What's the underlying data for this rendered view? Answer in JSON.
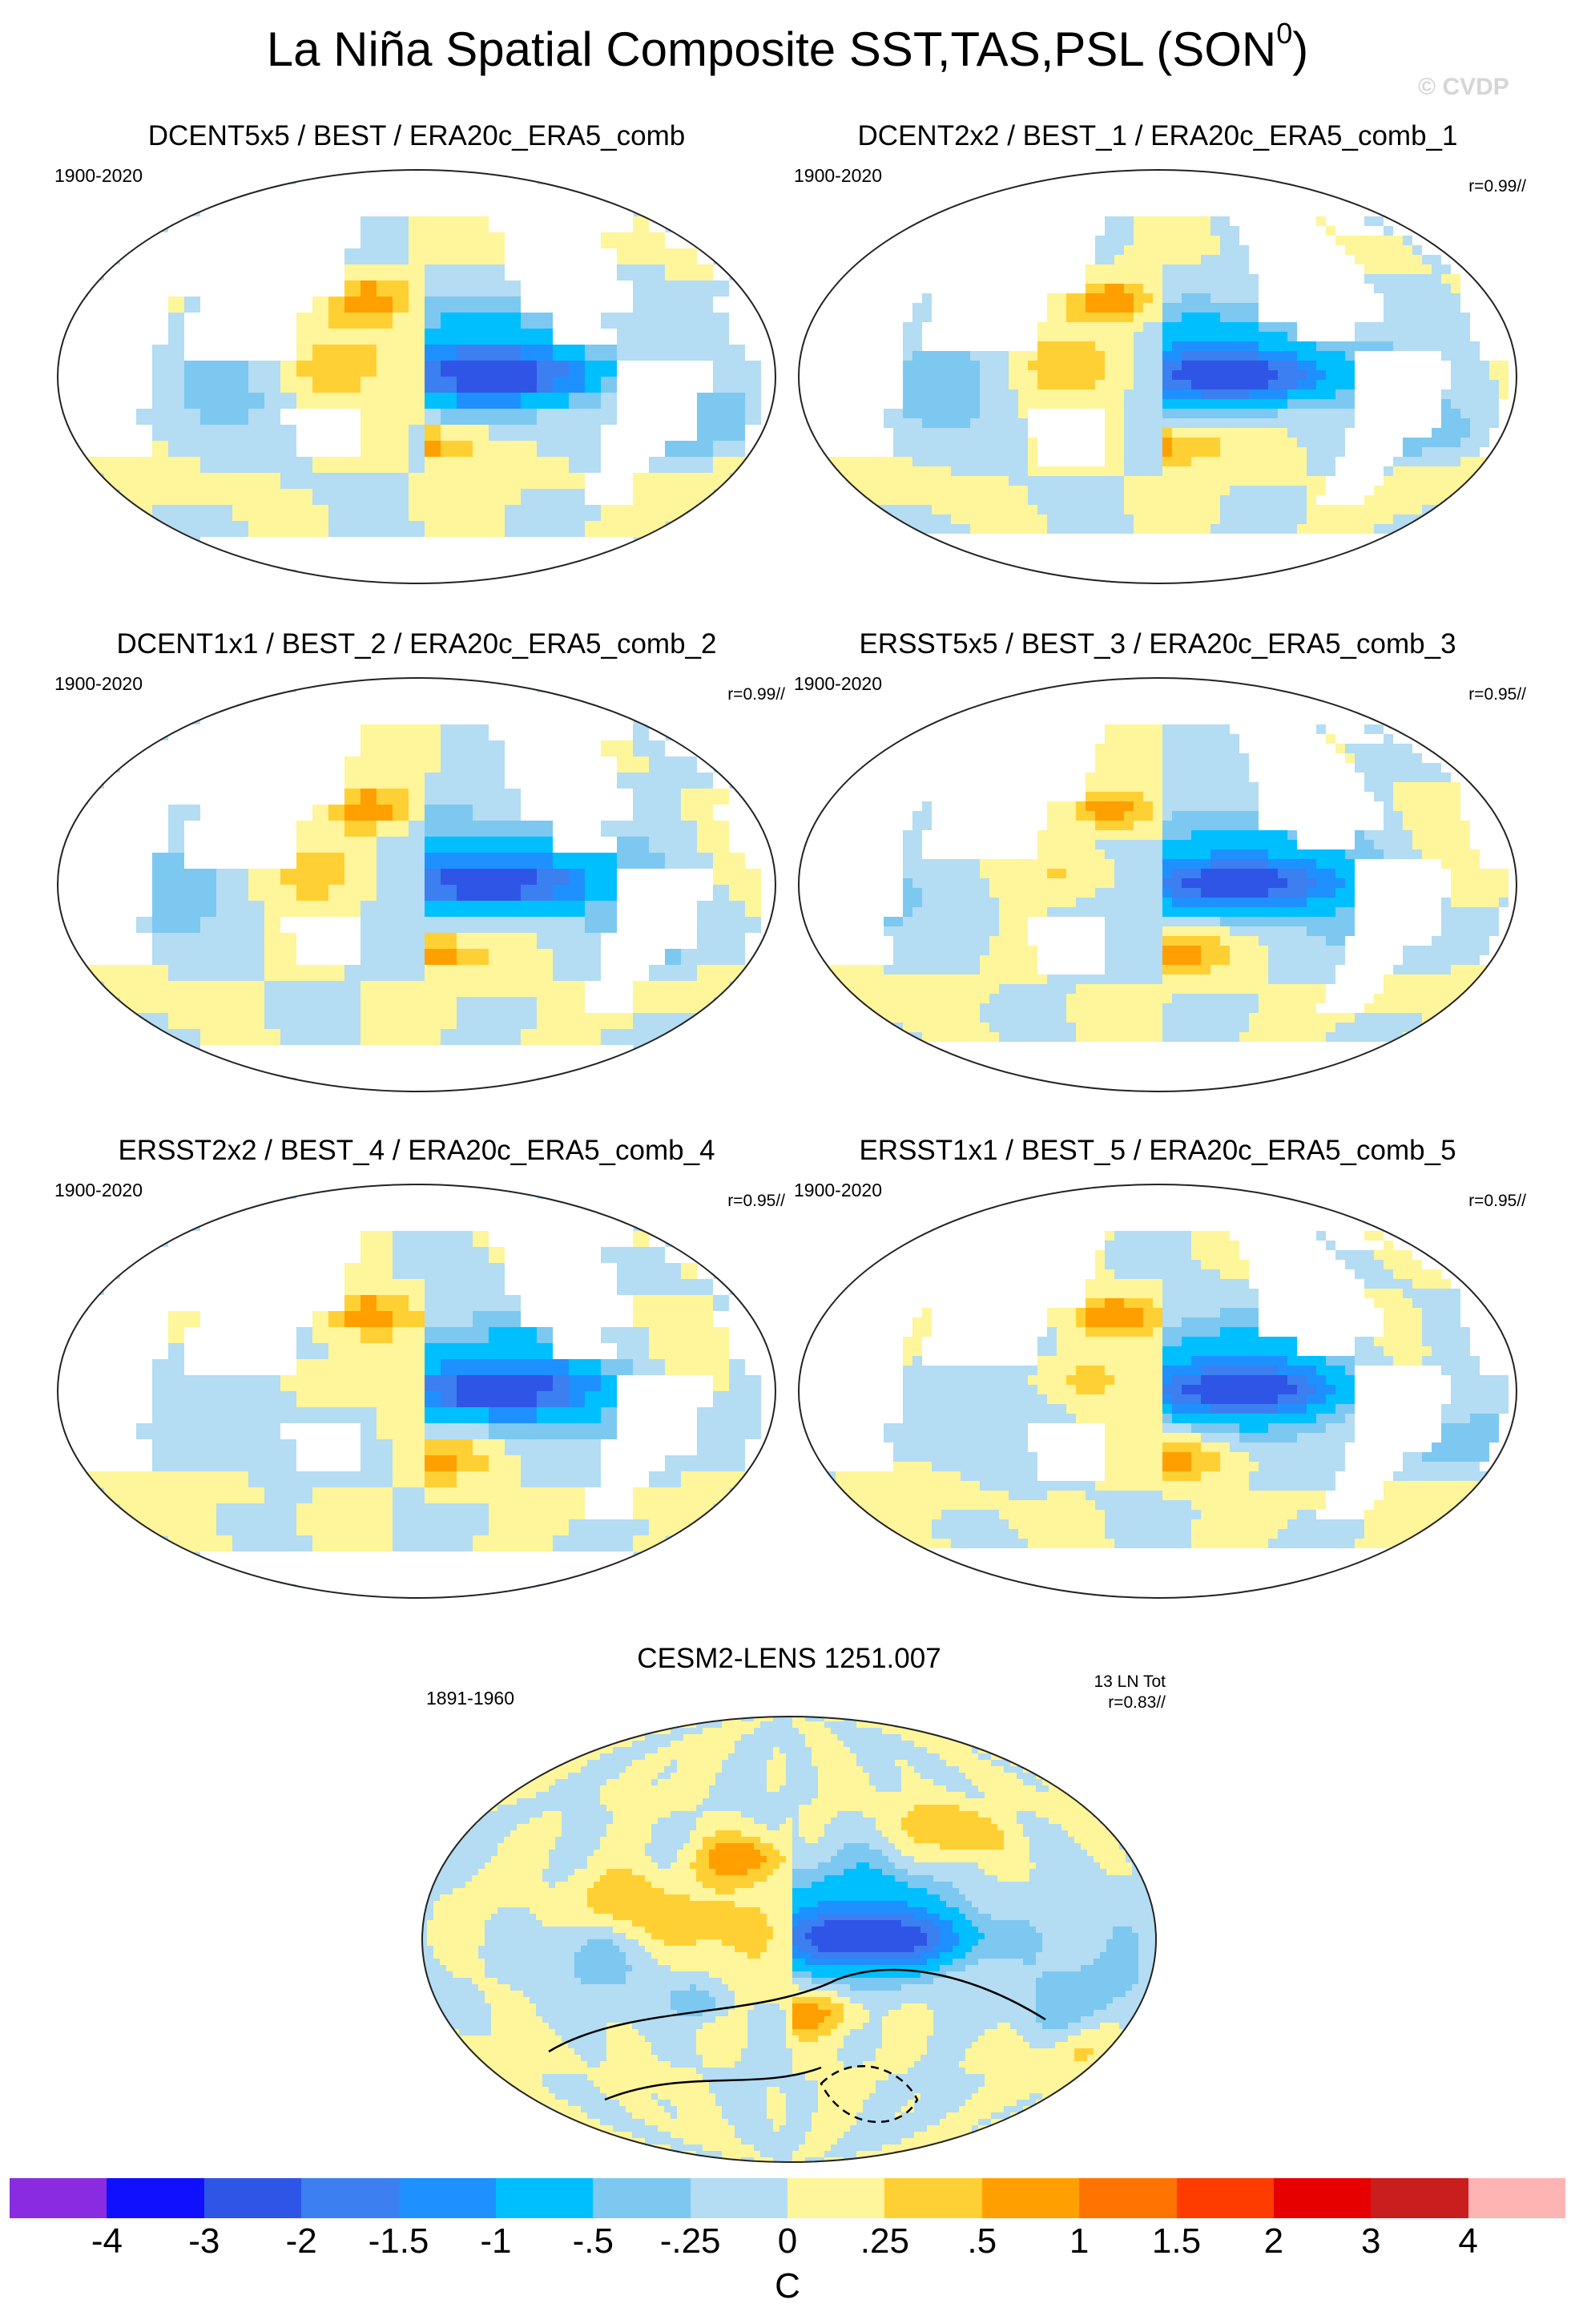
{
  "title": "La Niña Spatial Composite SST,TAS,PSL (SON",
  "title_superscript": "0",
  "title_close": ")",
  "watermark": "© CVDP",
  "chart_data": [
    {
      "type": "heatmap",
      "title": "DCENT5x5 / BEST / ERA20c_ERA5_comb",
      "years": "1900-2020",
      "corr": "",
      "corr_line1": "",
      "variant": 0
    },
    {
      "type": "heatmap",
      "title": "DCENT2x2 / BEST_1 / ERA20c_ERA5_comb_1",
      "years": "1900-2020",
      "corr": "r=0.99//",
      "corr_line1": "",
      "variant": 1
    },
    {
      "type": "heatmap",
      "title": "DCENT1x1 / BEST_2 / ERA20c_ERA5_comb_2",
      "years": "1900-2020",
      "corr": "r=0.99//",
      "corr_line1": "",
      "variant": 2
    },
    {
      "type": "heatmap",
      "title": "ERSST5x5 / BEST_3 / ERA20c_ERA5_comb_3",
      "years": "1900-2020",
      "corr": "r=0.95//",
      "corr_line1": "",
      "variant": 3
    },
    {
      "type": "heatmap",
      "title": "ERSST2x2 / BEST_4 / ERA20c_ERA5_comb_4",
      "years": "1900-2020",
      "corr": "r=0.95//",
      "corr_line1": "",
      "variant": 4
    },
    {
      "type": "heatmap",
      "title": "ERSST1x1 / BEST_5 / ERA20c_ERA5_comb_5",
      "years": "1900-2020",
      "corr": "r=0.95//",
      "corr_line1": "",
      "variant": 5
    },
    {
      "type": "heatmap",
      "title": "CESM2-LENS 1251.007",
      "years": "1891-1960",
      "corr": "r=0.83//",
      "corr_line1": "13 LN Tot",
      "variant": 6
    }
  ],
  "colorbar": {
    "unit": "C",
    "tick_labels": [
      "-4",
      "-3",
      "-2",
      "-1.5",
      "-1",
      "-.5",
      "-.25",
      "0",
      ".25",
      ".5",
      "1",
      "1.5",
      "2",
      "3",
      "4"
    ],
    "colors": [
      "#8a2be2",
      "#1010ff",
      "#2f55e6",
      "#3b7ff0",
      "#1e90ff",
      "#00bfff",
      "#7cc8f0",
      "#b4dcf2",
      "#fff59a",
      "#ffd033",
      "#ffa000",
      "#ff7300",
      "#ff3c00",
      "#e60000",
      "#c81e1e",
      "#ffb4b4"
    ]
  }
}
